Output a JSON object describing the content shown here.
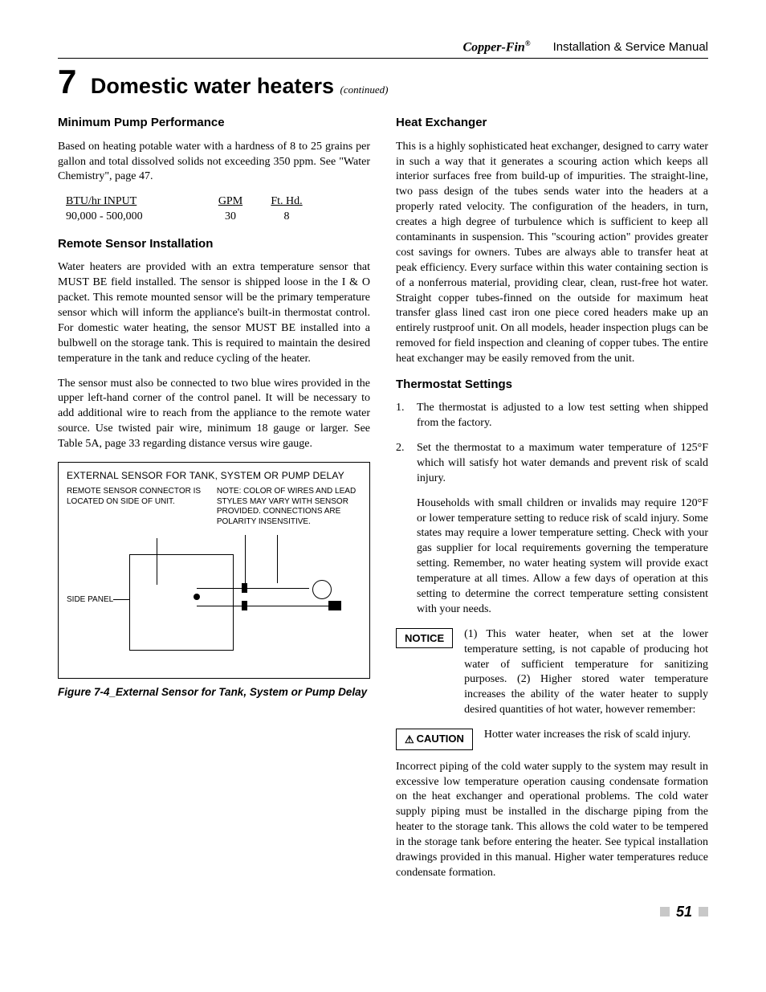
{
  "header": {
    "brand": "Copper-Fin",
    "brand_mark": "®",
    "manual": "Installation & Service Manual"
  },
  "chapter": {
    "number": "7",
    "title": "Domestic water heaters",
    "continued": "(continued)"
  },
  "left": {
    "h1": "Minimum Pump Performance",
    "p1": "Based on heating potable water with a hardness of 8 to 25 grains per gallon and total dissolved solids not exceeding 350 ppm.  See \"Water Chemistry\", page 47.",
    "pump_table": {
      "col1": "BTU/hr INPUT",
      "col2": "GPM",
      "col3": "Ft. Hd.",
      "row1_c1": "90,000 - 500,000",
      "row1_c2": "30",
      "row1_c3": "8"
    },
    "h2": "Remote Sensor Installation",
    "p2": "Water heaters are provided with an extra temperature sensor that MUST BE field installed.  The sensor is shipped loose in the I & O packet.  This remote mounted sensor will be the primary temperature sensor which will inform the appliance's built-in thermostat control.  For domestic water heating, the sensor MUST BE installed into a bulbwell on the storage tank.  This is required to maintain the desired temperature in the tank and reduce cycling of the heater.",
    "p3": "The sensor must also be connected to two blue wires provided in the upper left-hand corner of the control panel.  It will be necessary to add additional wire to reach from the appliance to the remote water source.  Use twisted pair wire, minimum 18 gauge or larger.  See Table 5A, page 33 regarding distance versus wire gauge.",
    "figure": {
      "title": "EXTERNAL SENSOR FOR TANK, SYSTEM OR PUMP DELAY",
      "note_left": "REMOTE SENSOR CONNECTOR IS LOCATED ON SIDE OF UNIT.",
      "note_right": "NOTE:  COLOR OF WIRES AND LEAD STYLES MAY VARY WITH SENSOR PROVIDED. CONNECTIONS ARE POLARITY INSENSITIVE.",
      "side_label": "SIDE PANEL",
      "caption": "Figure 7-4_External Sensor for Tank, System or Pump Delay"
    }
  },
  "right": {
    "h1": "Heat Exchanger",
    "p1": "This is a highly sophisticated heat exchanger, designed to carry water in such a way that it generates a scouring action which keeps all interior surfaces free from build-up of impurities.  The straight-line, two pass design of the tubes sends water into the headers at a properly rated velocity.  The configuration of the headers, in turn, creates a high degree of turbulence which is sufficient to keep all contaminants in suspension.  This \"scouring action\" provides greater cost savings for owners.  Tubes are always able to transfer heat at peak efficiency.  Every surface within this water containing section is of a nonferrous material, providing clear, clean, rust-free hot water.  Straight copper tubes-finned on the outside for maximum heat transfer glass lined cast iron one piece cored headers make up an entirely rustproof unit. On all models, header inspection plugs can be removed for field inspection and cleaning of copper tubes.  The entire heat exchanger may be easily removed from the unit.",
    "h2": "Thermostat Settings",
    "li1": "The thermostat is adjusted to a low test setting when shipped from the factory.",
    "li2": "Set the thermostat to a maximum water temperature of 125°F which will satisfy hot water demands and prevent risk of scald injury.",
    "sub1": "Households with small children or invalids may require 120°F or lower temperature setting to reduce risk of scald injury.  Some states may require a lower temperature setting.  Check with your gas supplier for local requirements governing the temperature setting.  Remember, no water heating system will provide exact temperature at all times.  Allow a few days of operation at this setting to determine the correct temperature setting consistent with your needs.",
    "notice_label": "NOTICE",
    "notice_text": "(1) This water heater, when set at the lower temperature setting, is not capable of producing hot water of sufficient temperature for sanitizing purposes. (2) Higher stored water temperature increases the ability of the water heater to supply desired quantities of hot water, however remember:",
    "caution_label": "CAUTION",
    "caution_text": "Hotter water increases the risk of scald injury.",
    "p_last": "Incorrect piping of the cold water supply to the system may result in excessive low temperature operation causing condensate formation on the heat exchanger and operational problems.  The cold water supply piping must be installed in the discharge piping from the heater to the storage tank. This allows the cold water to be tempered in the storage tank before entering the heater.  See typical installation drawings provided in this manual.  Higher water temperatures reduce condensate formation."
  },
  "page_number": "51"
}
